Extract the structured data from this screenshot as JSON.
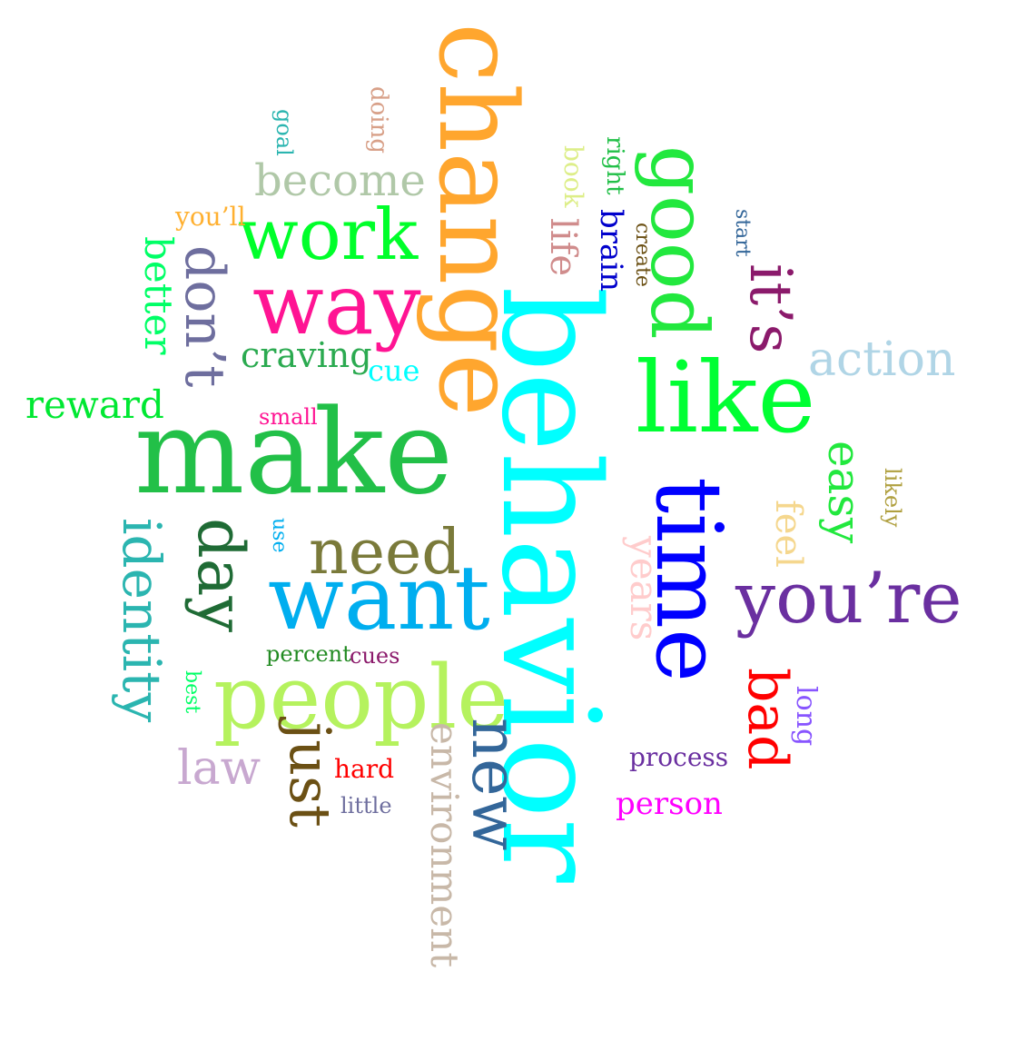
{
  "words": [
    {
      "text": "change",
      "color": "#FFA62E",
      "rotated": true
    },
    {
      "text": "behavior",
      "color": "#00FFFF",
      "rotated": true
    },
    {
      "text": "make",
      "color": "#22C048",
      "rotated": false
    },
    {
      "text": "time",
      "color": "#0000FF",
      "rotated": true
    },
    {
      "text": "like",
      "color": "#00FF33",
      "rotated": false
    },
    {
      "text": "want",
      "color": "#00AEEF",
      "rotated": false
    },
    {
      "text": "people",
      "color": "#B5F25E",
      "rotated": false
    },
    {
      "text": "good",
      "color": "#22E83E",
      "rotated": true
    },
    {
      "text": "way",
      "color": "#FF1493",
      "rotated": false
    },
    {
      "text": "work",
      "color": "#00FF2A",
      "rotated": false
    },
    {
      "text": "you’re",
      "color": "#6A2FA0",
      "rotated": false
    },
    {
      "text": "new",
      "color": "#336699",
      "rotated": true
    },
    {
      "text": "day",
      "color": "#1F6B35",
      "rotated": true
    },
    {
      "text": "just",
      "color": "#6B5014",
      "rotated": true
    },
    {
      "text": "need",
      "color": "#7A7A3A",
      "rotated": false
    },
    {
      "text": "it’s",
      "color": "#8B1A6B",
      "rotated": true
    },
    {
      "text": "don’t",
      "color": "#6E6E9E",
      "rotated": true
    },
    {
      "text": "bad",
      "color": "#FF0000",
      "rotated": true
    },
    {
      "text": "identity",
      "color": "#2BB5B0",
      "rotated": true
    },
    {
      "text": "action",
      "color": "#B0D5E6",
      "rotated": false
    },
    {
      "text": "easy",
      "color": "#22E83E",
      "rotated": true
    },
    {
      "text": "become",
      "color": "#B0C8A8",
      "rotated": false
    },
    {
      "text": "environment",
      "color": "#C8B8A8",
      "rotated": true
    },
    {
      "text": "years",
      "color": "#FFCCCC",
      "rotated": true
    },
    {
      "text": "better",
      "color": "#00FF66",
      "rotated": true
    },
    {
      "text": "reward",
      "color": "#00E832",
      "rotated": false
    },
    {
      "text": "law",
      "color": "#C8A8D0",
      "rotated": false
    },
    {
      "text": "craving",
      "color": "#2BAA50",
      "rotated": false
    },
    {
      "text": "life",
      "color": "#D08C8C",
      "rotated": true
    },
    {
      "text": "feel",
      "color": "#F5D78E",
      "rotated": true
    },
    {
      "text": "person",
      "color": "#FF00FF",
      "rotated": false
    },
    {
      "text": "brain",
      "color": "#0000CC",
      "rotated": true
    },
    {
      "text": "long",
      "color": "#8855FF",
      "rotated": true
    },
    {
      "text": "cue",
      "color": "#00FFFF",
      "rotated": false
    },
    {
      "text": "process",
      "color": "#6A2FA0",
      "rotated": false
    },
    {
      "text": "you’ll",
      "color": "#FFB030",
      "rotated": false
    },
    {
      "text": "book",
      "color": "#DDEE88",
      "rotated": true
    },
    {
      "text": "right",
      "color": "#22C048",
      "rotated": true
    },
    {
      "text": "likely",
      "color": "#B0A040",
      "rotated": true
    },
    {
      "text": "hard",
      "color": "#FF0000",
      "rotated": false
    },
    {
      "text": "small",
      "color": "#FF1493",
      "rotated": false
    },
    {
      "text": "percent",
      "color": "#228B22",
      "rotated": false
    },
    {
      "text": "cues",
      "color": "#8B1A6B",
      "rotated": false
    },
    {
      "text": "little",
      "color": "#6E6E9E",
      "rotated": false
    },
    {
      "text": "doing",
      "color": "#D8A088",
      "rotated": true
    },
    {
      "text": "goal",
      "color": "#2BB5B0",
      "rotated": true
    },
    {
      "text": "create",
      "color": "#6B5014",
      "rotated": true
    },
    {
      "text": "start",
      "color": "#336699",
      "rotated": true
    },
    {
      "text": "use",
      "color": "#00AEEF",
      "rotated": true
    },
    {
      "text": "best",
      "color": "#00FF66",
      "rotated": true
    }
  ]
}
